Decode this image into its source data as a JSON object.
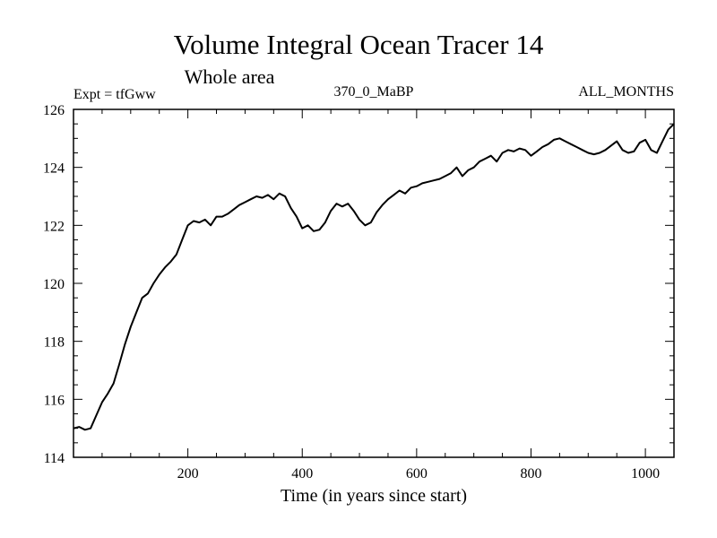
{
  "chart_data": {
    "type": "line",
    "title": "Volume Integral Ocean Tracer 14",
    "subtitle": "Whole area",
    "expt_label": "Expt = tfGww",
    "run_label": "370_0_MaBP",
    "months_label": "ALL_MONTHS",
    "xlabel": "Time (in years since start)",
    "ylabel": "",
    "xlim": [
      0,
      1050
    ],
    "ylim": [
      114,
      126
    ],
    "x_ticks": [
      200,
      400,
      600,
      800,
      1000
    ],
    "y_ticks": [
      114,
      116,
      118,
      120,
      122,
      124,
      126
    ],
    "grid": false,
    "line_color": "#000000",
    "series": [
      {
        "x": [
          0,
          10,
          20,
          30,
          40,
          50,
          60,
          70,
          80,
          90,
          100,
          110,
          120,
          130,
          140,
          150,
          160,
          170,
          180,
          190,
          200,
          210,
          220,
          230,
          240,
          250,
          260,
          270,
          280,
          290,
          300,
          310,
          320,
          330,
          340,
          350,
          360,
          370,
          380,
          390,
          400,
          410,
          420,
          430,
          440,
          450,
          460,
          470,
          480,
          490,
          500,
          510,
          520,
          530,
          540,
          550,
          560,
          570,
          580,
          590,
          600,
          610,
          620,
          630,
          640,
          650,
          660,
          670,
          680,
          690,
          700,
          710,
          720,
          730,
          740,
          750,
          760,
          770,
          780,
          790,
          800,
          810,
          820,
          830,
          840,
          850,
          860,
          870,
          880,
          890,
          900,
          910,
          920,
          930,
          940,
          950,
          960,
          970,
          980,
          990,
          1000,
          1010,
          1020,
          1030,
          1040,
          1050
        ],
        "values": [
          115.0,
          115.05,
          114.95,
          115.0,
          115.45,
          115.9,
          116.2,
          116.55,
          117.2,
          117.9,
          118.5,
          119.0,
          119.5,
          119.65,
          120.0,
          120.3,
          120.55,
          120.75,
          121.0,
          121.5,
          122.0,
          122.15,
          122.1,
          122.2,
          122.0,
          122.3,
          122.3,
          122.4,
          122.55,
          122.7,
          122.8,
          122.9,
          123.0,
          122.95,
          123.05,
          122.9,
          123.1,
          123.0,
          122.6,
          122.3,
          121.9,
          122.0,
          121.8,
          121.85,
          122.1,
          122.5,
          122.75,
          122.65,
          122.75,
          122.5,
          122.2,
          122.0,
          122.1,
          122.45,
          122.7,
          122.9,
          123.05,
          123.2,
          123.1,
          123.3,
          123.35,
          123.45,
          123.5,
          123.55,
          123.6,
          123.7,
          123.8,
          124.0,
          123.7,
          123.9,
          124.0,
          124.2,
          124.3,
          124.4,
          124.2,
          124.5,
          124.6,
          124.55,
          124.65,
          124.6,
          124.4,
          124.55,
          124.7,
          124.8,
          124.95,
          125.0,
          124.9,
          124.8,
          124.7,
          124.6,
          124.5,
          124.45,
          124.5,
          124.6,
          124.75,
          124.9,
          124.6,
          124.5,
          124.55,
          124.85,
          124.95,
          124.6,
          124.5,
          124.9,
          125.3,
          125.5
        ]
      }
    ]
  }
}
